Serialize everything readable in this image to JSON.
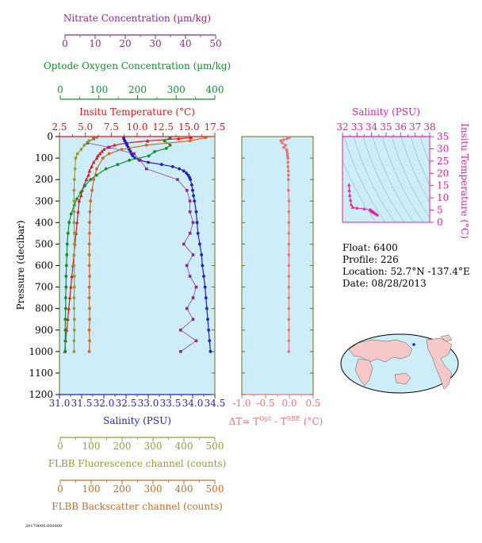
{
  "colors": {
    "nitrate": "#8b2a8b",
    "oxygen": "#178a2e",
    "temperature": "#e31414",
    "salinity": "#1e1ec8",
    "fluorescence": "#9a9a32",
    "backscatter": "#d2691e",
    "delta": "#f07070",
    "salinity_inset": "#e020a0",
    "plot_bg": "#cdeef8",
    "frame_olive": "#6b6b1e"
  },
  "axes": {
    "nitrate": {
      "title": "Nitrate Concentration (µm/kg)",
      "ticks": [
        "0",
        "10",
        "20",
        "30",
        "40",
        "50"
      ]
    },
    "oxygen": {
      "title": "Optode Oxygen Concentration (µm/kg)",
      "ticks": [
        "0",
        "100",
        "200",
        "300",
        "400"
      ]
    },
    "temperature": {
      "title": "Insitu Temperature (°C)",
      "ticks": [
        "2.5",
        "5.0",
        "7.5",
        "10.0",
        "12.5",
        "15.0",
        "17.5"
      ]
    },
    "pressure": {
      "title": "Pressure (decibar)",
      "ticks": [
        "0",
        "100",
        "200",
        "300",
        "400",
        "500",
        "600",
        "700",
        "800",
        "900",
        "1000",
        "1100",
        "1200"
      ]
    },
    "salinity": {
      "title": "Salinity (PSU)",
      "ticks": [
        "31.0",
        "31.5",
        "32.0",
        "32.5",
        "33.0",
        "33.5",
        "34.0",
        "34.5"
      ]
    },
    "fluorescence": {
      "title": "FLBB Fluorescence channel (counts)",
      "ticks": [
        "0",
        "100",
        "200",
        "300",
        "400",
        "500"
      ]
    },
    "backscatter": {
      "title": "FLBB Backscatter channel (counts)",
      "ticks": [
        "0",
        "100",
        "200",
        "300",
        "400",
        "500"
      ]
    },
    "delta": {
      "title": "ΔT= T",
      "sup1": "Opt",
      "mid": " - T",
      "sup2": "SBE",
      "end": " (°C)",
      "ticks": [
        "-1.0",
        "-0.5",
        "0.0",
        "0.5"
      ]
    },
    "ts_salinity": {
      "title": "Salinity (PSU)",
      "ticks": [
        "32",
        "33",
        "34",
        "35",
        "36",
        "37",
        "38"
      ]
    },
    "ts_temperature": {
      "title": "Insitu Temperature (°C)",
      "ticks": [
        "0",
        "5",
        "10",
        "15",
        "20",
        "25",
        "30",
        "35"
      ]
    }
  },
  "info": {
    "float": "Float:  6400",
    "profile": "Profile:  226",
    "location": "Location:  52.7°N  -137.4°E",
    "date": "Date:  08/28/2013"
  },
  "footer_text": "20170000.000000",
  "chart_data": [
    {
      "type": "line",
      "y_axis": "pressure",
      "ylim": [
        1200,
        0
      ],
      "series": [
        {
          "var": "temperature",
          "xlim": [
            2.5,
            17.5
          ],
          "pressure": [
            5,
            10,
            20,
            30,
            40,
            50,
            60,
            70,
            80,
            90,
            100,
            120,
            140,
            160,
            180,
            200,
            225,
            250,
            275,
            300,
            350,
            400,
            450,
            500,
            550,
            600,
            650,
            700,
            750,
            800,
            850,
            900,
            950,
            1000
          ],
          "values": [
            15.2,
            14.0,
            11.0,
            9.0,
            7.8,
            7.2,
            6.8,
            6.6,
            6.4,
            6.2,
            6.1,
            5.8,
            5.6,
            5.4,
            5.3,
            5.1,
            4.9,
            4.7,
            4.6,
            4.4,
            4.3,
            4.2,
            4.1,
            4.0,
            3.9,
            3.8,
            3.7,
            3.6,
            3.5,
            3.4,
            3.3,
            3.2,
            3.1,
            3.0
          ]
        },
        {
          "var": "salinity",
          "xlim": [
            31.0,
            34.5
          ],
          "pressure": [
            5,
            10,
            20,
            30,
            40,
            50,
            60,
            70,
            80,
            90,
            100,
            110,
            120,
            130,
            140,
            150,
            160,
            170,
            180,
            190,
            200,
            225,
            250,
            275,
            300,
            350,
            400,
            450,
            500,
            550,
            600,
            650,
            700,
            750,
            800,
            850,
            900,
            950,
            1000
          ],
          "values": [
            32.45,
            32.45,
            32.47,
            32.5,
            32.52,
            32.55,
            32.57,
            32.6,
            32.62,
            32.65,
            32.7,
            32.8,
            33.0,
            33.3,
            33.55,
            33.7,
            33.8,
            33.86,
            33.9,
            33.93,
            33.95,
            33.98,
            34.0,
            34.02,
            34.04,
            34.08,
            34.1,
            34.12,
            34.16,
            34.2,
            34.22,
            34.25,
            34.28,
            34.3,
            34.32,
            34.34,
            34.36,
            34.38,
            34.4
          ]
        },
        {
          "var": "nitrate",
          "xlim": [
            0,
            50
          ],
          "pressure": [
            10,
            30,
            50,
            80,
            110,
            150,
            200,
            250,
            300,
            350,
            400,
            450,
            500,
            550,
            600,
            650,
            700,
            750,
            800,
            850,
            900,
            950,
            1000
          ],
          "values": [
            11,
            9,
            16,
            24,
            26,
            28,
            38,
            41,
            42,
            42,
            43,
            42,
            40,
            43,
            41,
            42,
            44,
            43,
            41,
            43,
            39,
            44,
            39
          ]
        },
        {
          "var": "oxygen",
          "xlim": [
            0,
            400
          ],
          "pressure": [
            5,
            20,
            40,
            55,
            70,
            90,
            110,
            130,
            150,
            180,
            200,
            230,
            260,
            290,
            320,
            360,
            400,
            450,
            500,
            550,
            600,
            650,
            700,
            750,
            800,
            850,
            900,
            950,
            1000
          ],
          "values": [
            285,
            270,
            285,
            275,
            245,
            230,
            180,
            150,
            120,
            95,
            80,
            65,
            55,
            45,
            38,
            30,
            25,
            22,
            20,
            19,
            18,
            17,
            17,
            16,
            16,
            15,
            15,
            15,
            15
          ]
        },
        {
          "var": "fluorescence",
          "xlim": [
            0,
            500
          ],
          "pressure": [
            5,
            20,
            40,
            60,
            80,
            100,
            150,
            200,
            250,
            300,
            350,
            400,
            450,
            500,
            550,
            600,
            650,
            700,
            750,
            800,
            850,
            900,
            950,
            1000
          ],
          "values": [
            120,
            95,
            80,
            70,
            58,
            52,
            50,
            48,
            47,
            47,
            47,
            47,
            48,
            48,
            47,
            47,
            48,
            48,
            47,
            47,
            48,
            48,
            47,
            47
          ]
        },
        {
          "var": "backscatter",
          "xlim": [
            0,
            500
          ],
          "pressure": [
            5,
            20,
            40,
            60,
            80,
            100,
            150,
            200,
            250,
            300,
            350,
            400,
            450,
            500,
            550,
            600,
            650,
            700,
            750,
            800,
            850,
            900,
            950,
            1000
          ],
          "values": [
            470,
            420,
            280,
            200,
            160,
            140,
            120,
            110,
            105,
            100,
            98,
            97,
            97,
            96,
            96,
            96,
            97,
            96,
            96,
            97,
            97,
            96,
            97,
            96
          ]
        }
      ]
    },
    {
      "type": "scatter",
      "var": "delta",
      "xlim": [
        -1.0,
        0.5
      ],
      "ylim": [
        1200,
        0
      ],
      "pressure": [
        5,
        10,
        15,
        20,
        30,
        40,
        50,
        60,
        70,
        80,
        90,
        100,
        120,
        140,
        160,
        180,
        200,
        250,
        300,
        350,
        400,
        450,
        500,
        550,
        600,
        650,
        700,
        750,
        800,
        850,
        900,
        950,
        1000
      ],
      "values": [
        0.0,
        -0.05,
        -0.12,
        -0.18,
        -0.15,
        -0.08,
        -0.12,
        -0.06,
        -0.05,
        -0.04,
        -0.04,
        -0.03,
        -0.03,
        -0.03,
        -0.02,
        -0.02,
        -0.02,
        -0.02,
        -0.01,
        -0.01,
        -0.01,
        -0.01,
        -0.01,
        -0.01,
        -0.01,
        -0.01,
        -0.01,
        -0.01,
        -0.01,
        -0.01,
        -0.01,
        -0.01,
        -0.01
      ]
    },
    {
      "type": "scatter",
      "var": "ts",
      "xlim": [
        32,
        38
      ],
      "ylim": [
        0,
        35
      ],
      "salinity": [
        32.45,
        32.47,
        32.5,
        32.55,
        32.6,
        32.7,
        33.0,
        33.5,
        33.9,
        33.95,
        34.0,
        34.05,
        34.1,
        34.15,
        34.2,
        34.3,
        34.4
      ],
      "temperature": [
        15.2,
        13.0,
        11.0,
        9.0,
        7.2,
        6.1,
        5.8,
        5.5,
        5.1,
        4.9,
        4.6,
        4.4,
        4.2,
        4.0,
        3.8,
        3.4,
        3.0
      ]
    }
  ]
}
